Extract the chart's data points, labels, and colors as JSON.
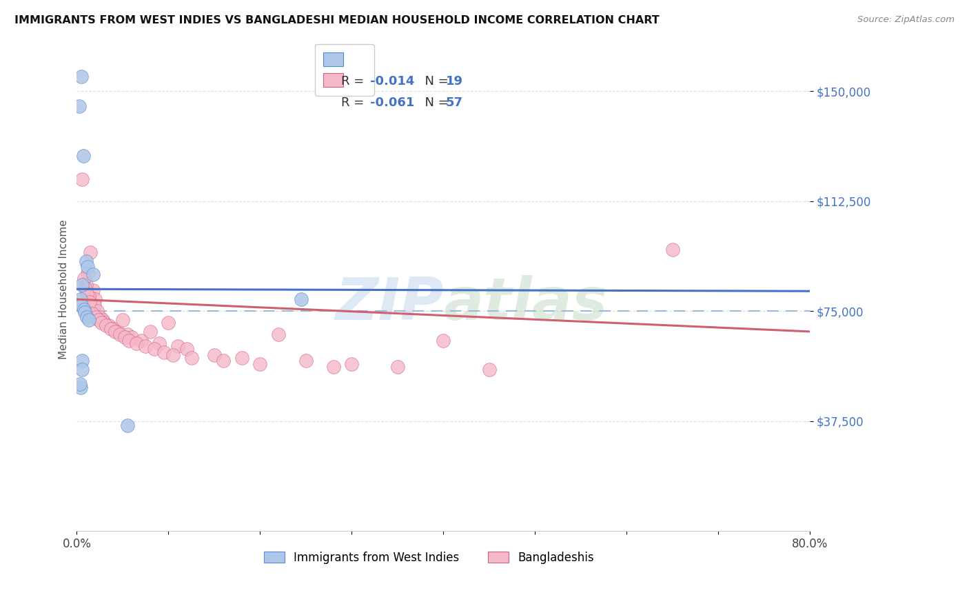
{
  "title": "IMMIGRANTS FROM WEST INDIES VS BANGLADESHI MEDIAN HOUSEHOLD INCOME CORRELATION CHART",
  "source": "Source: ZipAtlas.com",
  "ylabel": "Median Household Income",
  "y_ticks": [
    37500,
    75000,
    112500,
    150000
  ],
  "y_tick_labels": [
    "$37,500",
    "$75,000",
    "$112,500",
    "$150,000"
  ],
  "xlim": [
    0.0,
    80.0
  ],
  "ylim": [
    0,
    165000
  ],
  "watermark_zip": "ZIP",
  "watermark_atlas": "atlas",
  "blue_R": "-0.014",
  "blue_N": "19",
  "pink_R": "-0.061",
  "pink_N": "57",
  "legend_label_blue": "Immigrants from West Indies",
  "legend_label_pink": "Bangladeshis",
  "blue_fill": "#aec6e8",
  "blue_edge": "#5588cc",
  "blue_line": "#4472c4",
  "pink_fill": "#f5b8c8",
  "pink_edge": "#d06080",
  "pink_line": "#d06070",
  "dashed_color": "#99bbdd",
  "grid_color": "#dddddd",
  "blue_scatter_x": [
    0.5,
    0.7,
    1.0,
    1.2,
    0.6,
    0.4,
    0.5,
    0.8,
    1.8,
    0.9,
    1.1,
    1.3,
    24.5,
    0.6,
    0.55,
    0.45,
    5.5,
    0.3,
    0.35
  ],
  "blue_scatter_y": [
    155000,
    128000,
    92000,
    90000,
    84000,
    79000,
    77000,
    75500,
    87500,
    74500,
    73000,
    72000,
    79000,
    58000,
    55000,
    49000,
    36000,
    145000,
    50000
  ],
  "pink_scatter_x": [
    1.2,
    1.5,
    1.8,
    2.0,
    1.0,
    1.3,
    1.6,
    1.9,
    2.2,
    2.5,
    2.8,
    3.0,
    3.5,
    4.0,
    4.5,
    5.0,
    5.5,
    6.0,
    7.0,
    8.0,
    9.0,
    10.0,
    11.0,
    12.0,
    15.0,
    18.0,
    22.0,
    25.0,
    30.0,
    35.0,
    40.0,
    45.0,
    0.8,
    0.9,
    1.1,
    1.4,
    1.7,
    2.1,
    2.4,
    2.7,
    3.2,
    3.7,
    4.2,
    4.7,
    5.2,
    5.7,
    6.5,
    7.5,
    8.5,
    9.5,
    10.5,
    12.5,
    16.0,
    20.0,
    28.0,
    65.0,
    0.6
  ],
  "pink_scatter_y": [
    88000,
    95000,
    82000,
    79000,
    84000,
    80000,
    76000,
    77000,
    75000,
    73000,
    72000,
    71000,
    70000,
    69000,
    68000,
    72000,
    67000,
    66000,
    65000,
    68000,
    64000,
    71000,
    63000,
    62000,
    60000,
    59000,
    67000,
    58000,
    57000,
    56000,
    65000,
    55000,
    86000,
    83000,
    81000,
    78000,
    74000,
    73000,
    72000,
    71000,
    70000,
    69000,
    68000,
    67000,
    66000,
    65000,
    64000,
    63000,
    62000,
    61000,
    60000,
    59000,
    58000,
    57000,
    56000,
    96000,
    120000
  ],
  "blue_trendline_y": [
    82500,
    81800
  ],
  "pink_trendline_y": [
    79000,
    68000
  ],
  "dashed_y": 75000
}
